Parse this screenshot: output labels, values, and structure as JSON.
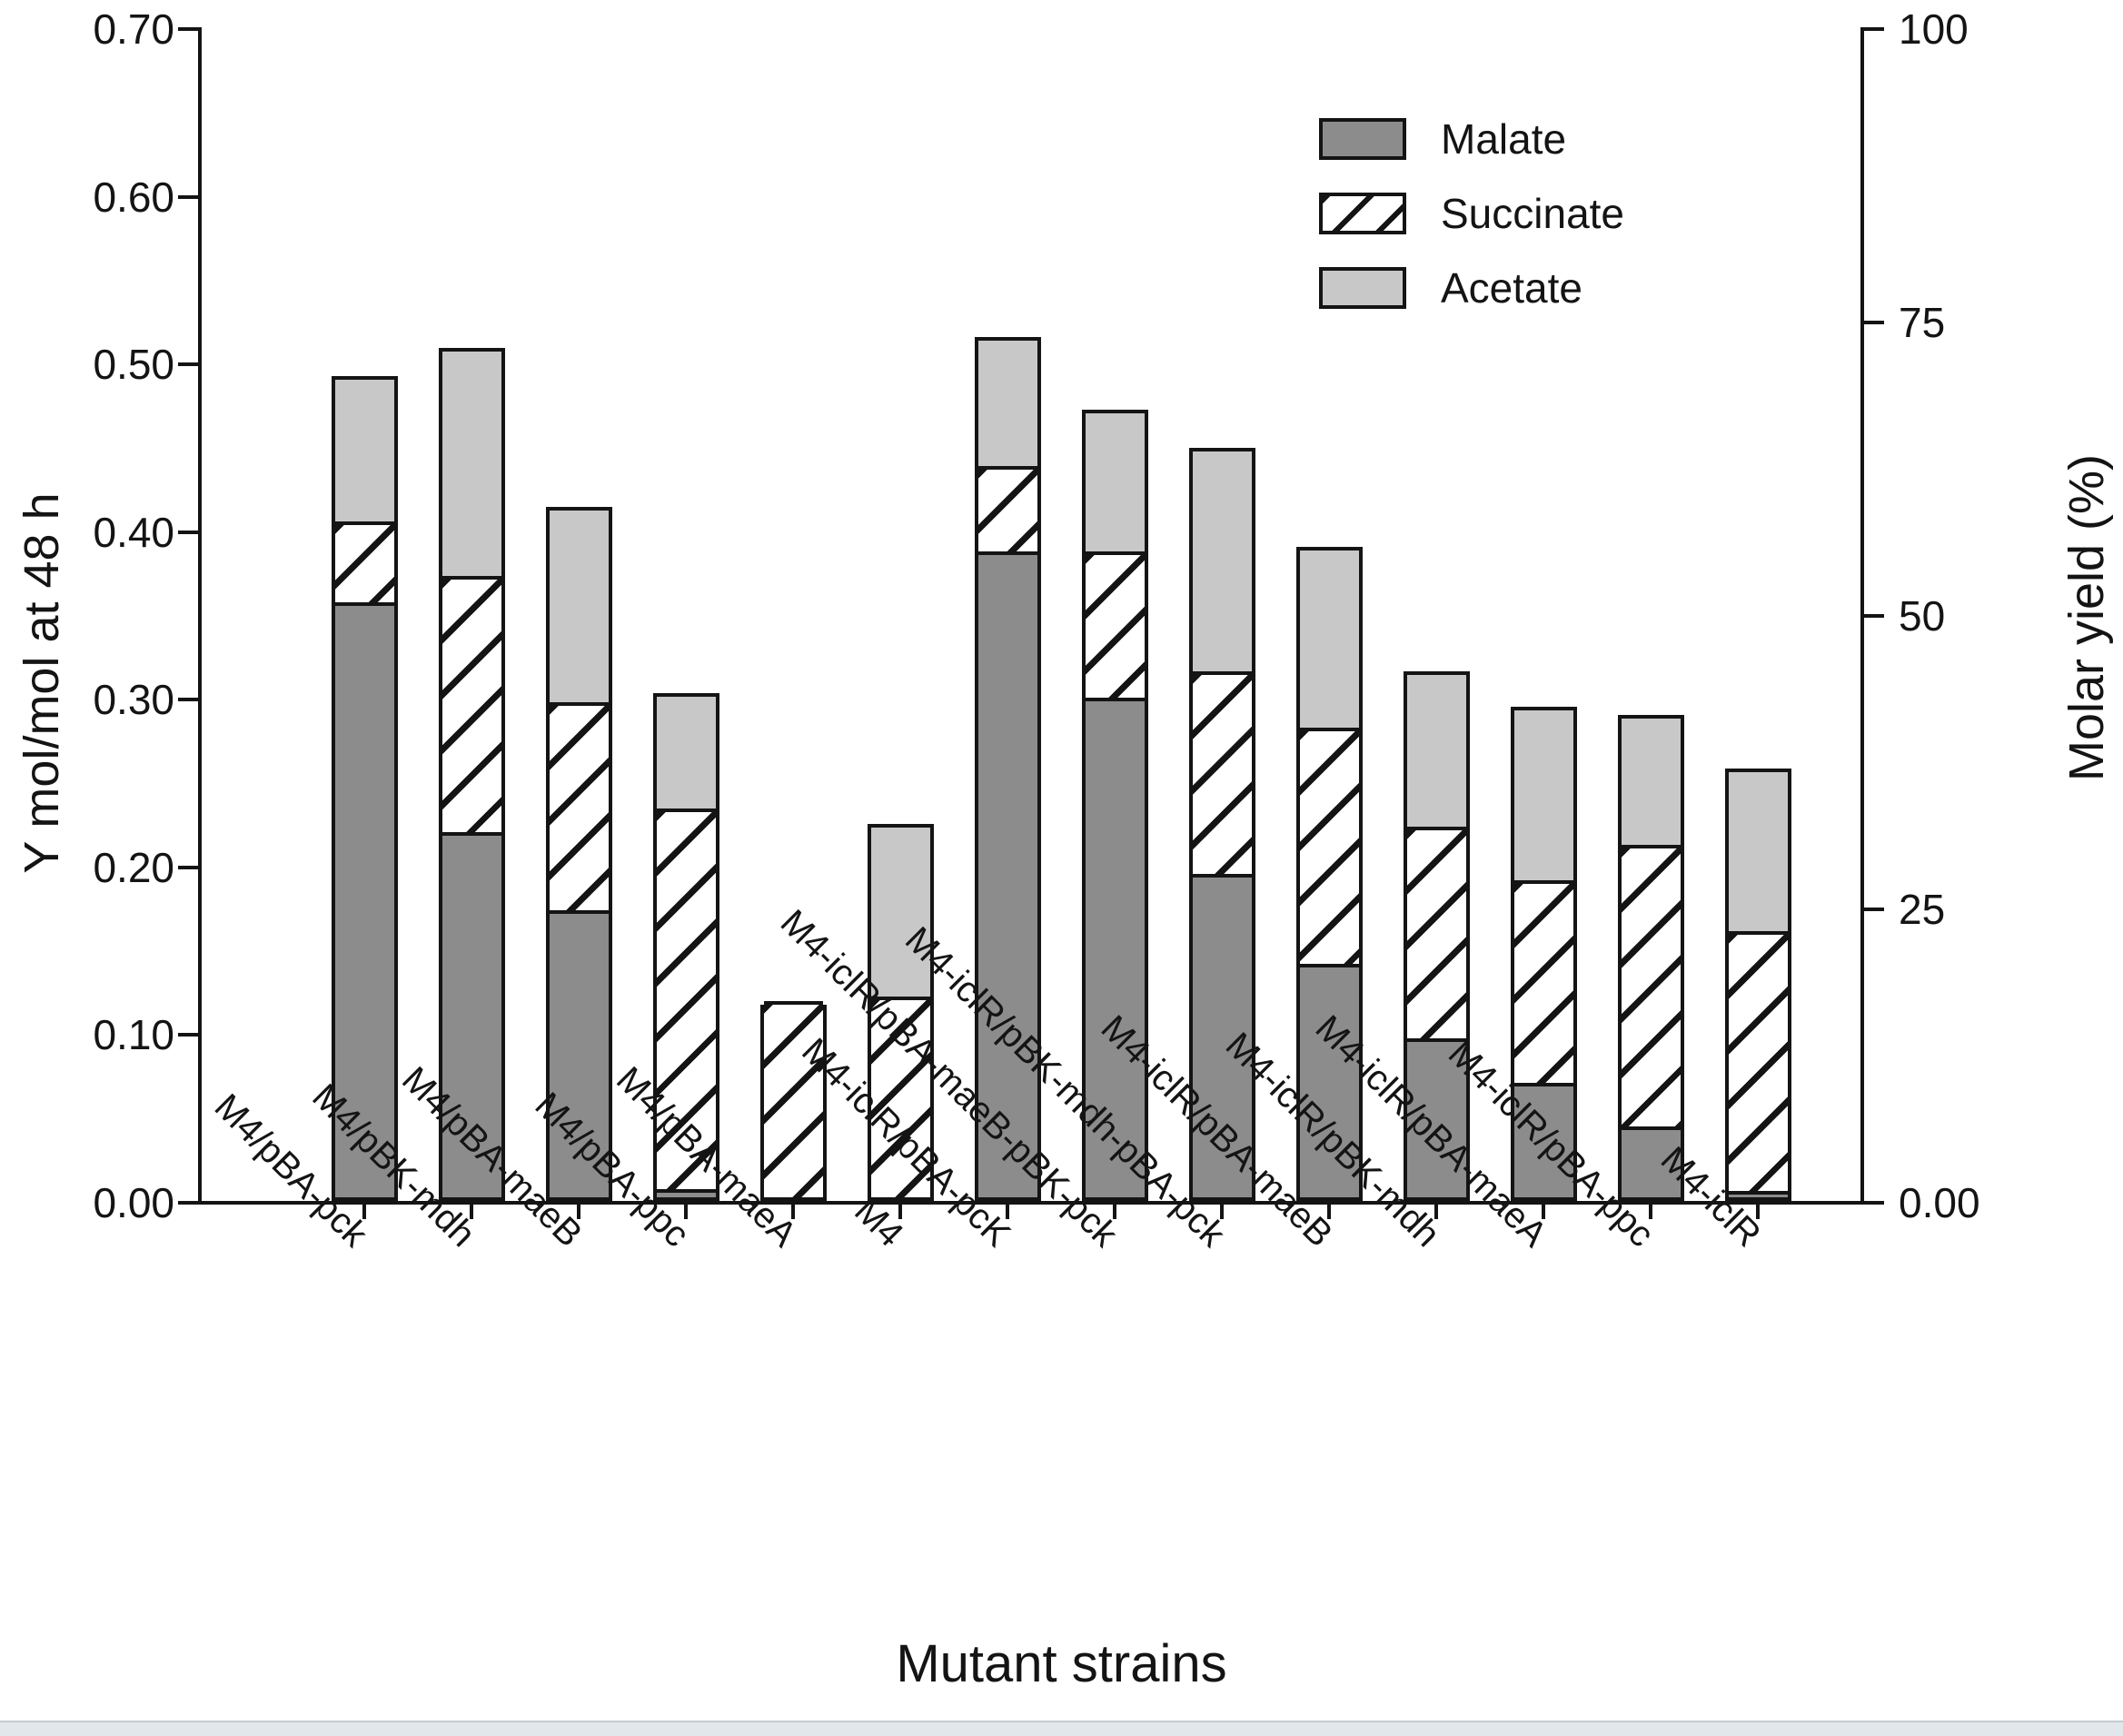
{
  "chart_data": {
    "type": "bar",
    "stacked": true,
    "grid": false,
    "legend_position": "upper-right",
    "xlabel": "Mutant strains",
    "ylabel_left": "Y mol/mol at 48 h",
    "ylabel_right": "Molar yield (%)",
    "left_axis": {
      "min": 0.0,
      "max": 0.7,
      "ticks": [
        {
          "label": "0.00",
          "value": 0.0
        },
        {
          "label": "0.10",
          "value": 0.1
        },
        {
          "label": "0.20",
          "value": 0.2
        },
        {
          "label": "0.30",
          "value": 0.3
        },
        {
          "label": "0.40",
          "value": 0.4
        },
        {
          "label": "0.50",
          "value": 0.5
        },
        {
          "label": "0.60",
          "value": 0.6
        },
        {
          "label": "0.70",
          "value": 0.7
        }
      ]
    },
    "right_axis": {
      "min": 0,
      "max": 100,
      "ticks": [
        {
          "label": "0.00",
          "value": 0
        },
        {
          "label": "25",
          "value": 25
        },
        {
          "label": "50",
          "value": 50
        },
        {
          "label": "75",
          "value": 75
        },
        {
          "label": "100",
          "value": 100
        }
      ]
    },
    "categories": [
      "M4/pBA-pck",
      "M4/pBK-mdh",
      "M4/pBA-maeB",
      "M4/pBA-ppc",
      "M4/pBA-maeA",
      "M4",
      "M4-iclR/pBA-pcK",
      "M4-iclR/pBA-maeB-pBK-pck",
      "M4-iclR/pBK-mdh-pBA-pck",
      "M4-iclR/pBA-maeB",
      "M4-iclR/pBK-mdh",
      "M4-iclR/pBA-maeA",
      "M4-iclR/pBA-ppc",
      "M4-iclR"
    ],
    "series": [
      {
        "name": "Malate",
        "style": "solid-dark",
        "color": "#8c8c8c",
        "values": [
          0.355,
          0.218,
          0.171,
          0.005,
          0.0,
          0.0,
          0.385,
          0.298,
          0.193,
          0.139,
          0.095,
          0.068,
          0.042,
          0.004
        ]
      },
      {
        "name": "Succinate",
        "style": "hatched",
        "color": "#ffffff",
        "hatch_color": "#141414",
        "values": [
          0.048,
          0.153,
          0.124,
          0.227,
          0.117,
          0.12,
          0.051,
          0.087,
          0.121,
          0.141,
          0.126,
          0.121,
          0.168,
          0.155
        ]
      },
      {
        "name": "Acetate",
        "style": "solid-light",
        "color": "#c8c8c8",
        "values": [
          0.089,
          0.138,
          0.119,
          0.071,
          0.0,
          0.105,
          0.079,
          0.087,
          0.135,
          0.11,
          0.095,
          0.106,
          0.08,
          0.099
        ]
      }
    ],
    "totals": [
      0.492,
      0.509,
      0.414,
      0.303,
      0.117,
      0.225,
      0.515,
      0.472,
      0.449,
      0.39,
      0.316,
      0.295,
      0.29,
      0.258
    ],
    "border_color": "#141414"
  }
}
